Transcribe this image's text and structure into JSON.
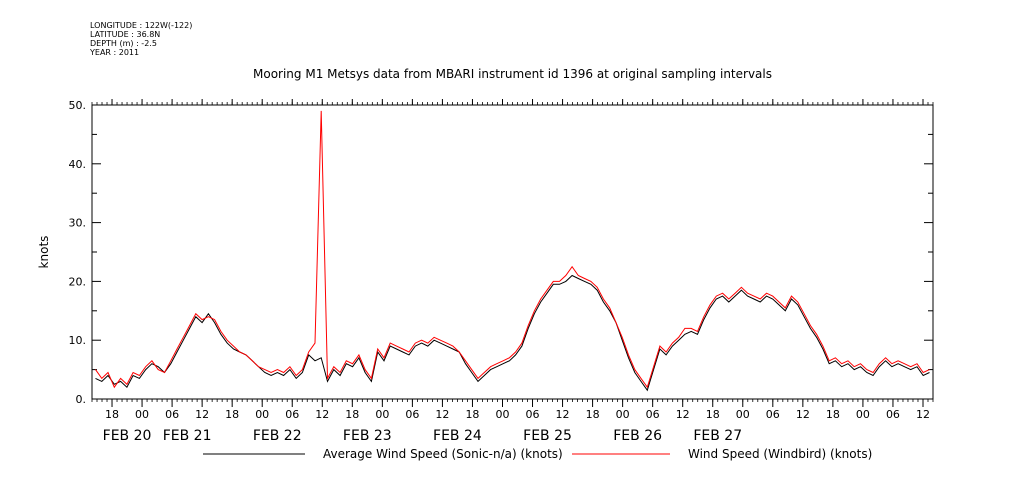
{
  "header": {
    "longitude": "LONGITUDE : 122W(-122)",
    "latitude": "LATITUDE : 36.8N",
    "depth": "DEPTH (m) : -2.5",
    "year": "YEAR : 2011"
  },
  "colors": {
    "avg_series": "#000000",
    "windbird_series": "#ff0000",
    "axis": "#000000"
  },
  "chart_data": {
    "type": "line",
    "title": "Mooring M1 Metsys data from MBARI instrument id 1396 at original sampling intervals",
    "xlabel": "",
    "ylabel": "knots",
    "x_unit": "hours since FEB 20 00:00",
    "xlim": [
      14,
      150
    ],
    "ylim": [
      0,
      50
    ],
    "y_ticks": [
      0,
      10,
      20,
      30,
      40,
      50
    ],
    "y_tick_labels": [
      "0.",
      "10.",
      "20.",
      "30.",
      "40.",
      "50."
    ],
    "x_hour_ticks": [
      {
        "x": 18,
        "label": "18"
      },
      {
        "x": 24,
        "label": "00"
      },
      {
        "x": 30,
        "label": "06"
      },
      {
        "x": 36,
        "label": "12"
      },
      {
        "x": 42,
        "label": "18"
      },
      {
        "x": 48,
        "label": "00"
      },
      {
        "x": 54,
        "label": "06"
      },
      {
        "x": 60,
        "label": "12"
      },
      {
        "x": 66,
        "label": "18"
      },
      {
        "x": 72,
        "label": "00"
      },
      {
        "x": 78,
        "label": "06"
      },
      {
        "x": 84,
        "label": "12"
      },
      {
        "x": 90,
        "label": "18"
      },
      {
        "x": 96,
        "label": "00"
      },
      {
        "x": 102,
        "label": "06"
      },
      {
        "x": 108,
        "label": "12"
      },
      {
        "x": 114,
        "label": "18"
      },
      {
        "x": 120,
        "label": "00"
      },
      {
        "x": 126,
        "label": "06"
      },
      {
        "x": 132,
        "label": "12"
      },
      {
        "x": 138,
        "label": "18"
      },
      {
        "x": 144,
        "label": "00"
      },
      {
        "x": 150,
        "label": "06"
      },
      {
        "x": 156,
        "label": "12"
      },
      {
        "x": 162,
        "label": "18"
      },
      {
        "x": 168,
        "label": "00"
      },
      {
        "x": 174,
        "label": "06"
      },
      {
        "x": 180,
        "label": "12"
      }
    ],
    "x_day_labels": [
      {
        "x": 21,
        "label": "FEB 20"
      },
      {
        "x": 33,
        "label": "FEB 21"
      },
      {
        "x": 51,
        "label": "FEB 22"
      },
      {
        "x": 69,
        "label": "FEB 23"
      },
      {
        "x": 87,
        "label": "FEB 24"
      },
      {
        "x": 105,
        "label": "FEB 25"
      },
      {
        "x": 123,
        "label": "FEB 26"
      },
      {
        "x": 139,
        "label": "FEB 27"
      }
    ],
    "series": [
      {
        "name": "Average Wind Speed (Sonic-n/a) (knots)",
        "color": "#000000",
        "x": [
          14.5,
          15,
          15.5,
          16,
          16.5,
          17,
          17.5,
          18,
          18.5,
          19,
          19.5,
          20,
          21,
          22,
          23,
          24,
          25,
          26,
          27,
          28,
          30,
          32,
          34,
          35,
          36,
          38,
          40,
          42,
          44,
          46,
          47,
          48,
          49,
          50,
          51,
          52,
          53,
          54,
          55,
          56,
          57,
          58,
          59,
          60,
          61,
          62,
          63,
          64,
          65,
          66,
          67,
          68,
          69,
          70,
          71,
          72,
          73,
          74,
          75,
          76,
          77,
          78,
          79,
          80,
          81,
          82,
          83,
          84,
          85,
          86,
          87,
          88,
          89,
          90,
          91,
          92,
          93,
          94,
          95,
          96,
          97,
          98,
          99,
          100,
          101,
          102,
          103,
          104,
          105,
          106,
          107,
          108,
          109,
          110,
          111,
          112,
          113,
          114,
          115,
          116,
          117,
          118,
          119,
          120,
          121,
          122,
          123,
          124,
          125,
          126,
          127,
          128,
          129,
          130,
          131,
          132,
          133,
          134,
          135,
          136,
          137,
          138,
          139,
          140,
          141,
          142,
          143,
          144,
          145,
          146,
          147,
          148,
          149,
          149.8
        ],
        "y": [
          3.5,
          3.0,
          4.0,
          2.5,
          3.0,
          2.0,
          4.0,
          3.5,
          5.0,
          6.0,
          5.5,
          4.5,
          6.0,
          8.0,
          10.0,
          12.0,
          14.0,
          13.0,
          14.5,
          13.0,
          11.0,
          9.5,
          8.5,
          8.0,
          7.5,
          6.5,
          5.5,
          4.5,
          4.0,
          4.5,
          4.0,
          5.0,
          3.5,
          4.5,
          7.5,
          6.5,
          7.0,
          3.0,
          5.0,
          4.0,
          6.0,
          5.5,
          7.0,
          4.5,
          3.0,
          8.0,
          6.5,
          9.0,
          8.5,
          8.0,
          7.5,
          9.0,
          9.5,
          9.0,
          10.0,
          9.5,
          9.0,
          8.5,
          8.0,
          6.0,
          4.5,
          3.0,
          4.0,
          5.0,
          5.5,
          6.0,
          6.5,
          7.5,
          9.0,
          12.0,
          14.5,
          16.5,
          18.0,
          19.5,
          19.5,
          20.0,
          21.0,
          20.5,
          20.0,
          19.5,
          18.5,
          16.5,
          15.0,
          13.0,
          10.0,
          7.0,
          4.5,
          3.0,
          1.5,
          5.0,
          8.5,
          7.5,
          9.0,
          10.0,
          11.0,
          11.5,
          11.0,
          13.5,
          15.5,
          17.0,
          17.5,
          16.5,
          17.5,
          18.5,
          17.5,
          17.0,
          16.5,
          17.5,
          17.0,
          16.0,
          15.0,
          17.0,
          16.0,
          14.0,
          12.0,
          10.5,
          8.5,
          6.0,
          6.5,
          5.5,
          6.0,
          5.0,
          5.5,
          4.5,
          4.0,
          5.5,
          6.5,
          5.5,
          6.0,
          5.5,
          5.0,
          5.5,
          4.0,
          4.5
        ],
        "note": "series spans Feb 20 - Feb 27; x values after hour 149 are plotted on the compressed late-week axis"
      },
      {
        "name": "Wind Speed (Windbird) (knots)",
        "color": "#ff0000",
        "x": [
          14.5,
          15,
          15.5,
          16,
          16.5,
          17,
          17.5,
          18,
          18.5,
          19,
          19.5,
          20,
          21,
          22,
          23,
          24,
          25,
          26,
          27,
          28,
          30,
          32,
          34,
          35,
          36,
          38,
          40,
          42,
          44,
          46,
          47,
          48,
          49,
          50,
          51,
          52,
          53,
          54,
          55,
          56,
          57,
          58,
          59,
          60,
          61,
          62,
          63,
          64,
          65,
          66,
          67,
          68,
          69,
          70,
          71,
          72,
          73,
          74,
          75,
          76,
          77,
          78,
          79,
          80,
          81,
          82,
          83,
          84,
          85,
          86,
          87,
          88,
          89,
          90,
          91,
          92,
          93,
          94,
          95,
          96,
          97,
          98,
          99,
          100,
          101,
          102,
          103,
          104,
          105,
          106,
          107,
          108,
          109,
          110,
          111,
          112,
          113,
          114,
          115,
          116,
          117,
          118,
          119,
          120,
          121,
          122,
          123,
          124,
          125,
          126,
          127,
          128,
          129,
          130,
          131,
          132,
          133,
          134,
          135,
          136,
          137,
          138,
          139,
          140,
          141,
          142,
          143,
          144,
          145,
          146,
          147,
          148,
          149,
          149.8
        ],
        "y": [
          5.0,
          3.5,
          4.5,
          2.0,
          3.5,
          2.5,
          4.5,
          4.0,
          5.5,
          6.5,
          5.0,
          4.5,
          6.5,
          8.5,
          10.5,
          12.5,
          14.5,
          13.5,
          14.0,
          13.5,
          11.5,
          10.0,
          9.0,
          8.0,
          7.5,
          6.5,
          5.5,
          5.0,
          4.5,
          5.0,
          4.5,
          5.5,
          4.0,
          5.0,
          8.0,
          9.5,
          49.0,
          3.5,
          5.5,
          4.5,
          6.5,
          6.0,
          7.5,
          5.0,
          3.5,
          8.5,
          7.0,
          9.5,
          9.0,
          8.5,
          8.0,
          9.5,
          10.0,
          9.5,
          10.5,
          10.0,
          9.5,
          9.0,
          8.0,
          6.5,
          5.0,
          3.5,
          4.5,
          5.5,
          6.0,
          6.5,
          7.0,
          8.0,
          9.5,
          12.5,
          15.0,
          17.0,
          18.5,
          20.0,
          20.0,
          21.0,
          22.5,
          21.0,
          20.5,
          20.0,
          19.0,
          17.0,
          15.5,
          13.0,
          10.5,
          7.5,
          5.0,
          3.5,
          2.0,
          5.5,
          9.0,
          8.0,
          9.5,
          10.5,
          12.0,
          12.0,
          11.5,
          14.0,
          16.0,
          17.5,
          18.0,
          17.0,
          18.0,
          19.0,
          18.0,
          17.5,
          17.0,
          18.0,
          17.5,
          16.5,
          15.5,
          17.5,
          16.5,
          14.5,
          12.5,
          11.0,
          9.0,
          6.5,
          7.0,
          6.0,
          6.5,
          5.5,
          6.0,
          5.0,
          4.5,
          6.0,
          7.0,
          6.0,
          6.5,
          6.0,
          5.5,
          6.0,
          4.5,
          5.0
        ]
      }
    ],
    "legend": [
      {
        "label": "Average Wind Speed (Sonic-n/a) (knots)",
        "color": "#000000"
      },
      {
        "label": "Wind Speed (Windbird) (knots)",
        "color": "#ff0000"
      }
    ],
    "legend_position": "bottom"
  }
}
